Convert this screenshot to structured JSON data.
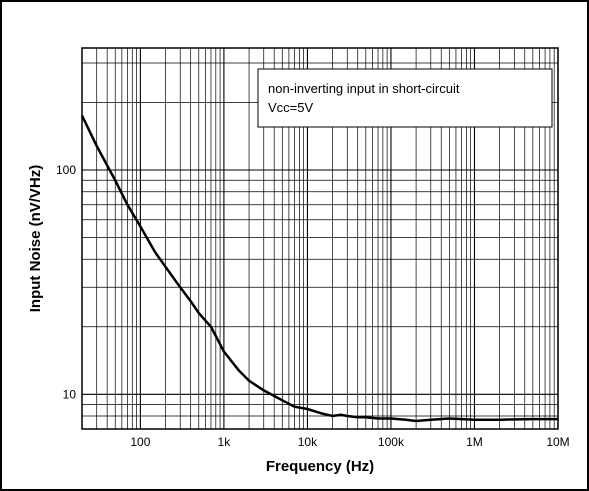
{
  "chart_data": {
    "type": "line",
    "xlabel": "Frequency  (Hz)",
    "ylabel": "Input Noise   (nV/VHz)",
    "x_scale": "log",
    "y_scale": "log",
    "xlim": [
      20,
      10000000
    ],
    "ylim": [
      7,
      350
    ],
    "grid": true,
    "x_ticks": [
      {
        "value": 100,
        "label": "100"
      },
      {
        "value": 1000,
        "label": "1k"
      },
      {
        "value": 10000,
        "label": "10k"
      },
      {
        "value": 100000,
        "label": "100k"
      },
      {
        "value": 1000000,
        "label": "1M"
      },
      {
        "value": 10000000,
        "label": "10M"
      }
    ],
    "y_ticks": [
      {
        "value": 10,
        "label": "10"
      },
      {
        "value": 100,
        "label": "100"
      }
    ],
    "annotation": [
      "non-inverting input in short-circuit",
      "Vcc=5V"
    ],
    "series": [
      {
        "color": "#000000",
        "x": [
          20,
          30,
          50,
          70,
          100,
          150,
          200,
          300,
          400,
          500,
          700,
          1000,
          1500,
          2000,
          3000,
          5000,
          7000,
          10000,
          15000,
          20000,
          25000,
          30000,
          40000,
          50000,
          70000,
          100000,
          150000,
          200000,
          300000,
          500000,
          1000000,
          2000000,
          5000000,
          10000000
        ],
        "y": [
          175,
          128,
          90,
          70,
          56,
          43,
          37,
          30,
          26,
          23,
          20,
          15.5,
          12.8,
          11.5,
          10.4,
          9.4,
          8.8,
          8.6,
          8.2,
          8.0,
          8.1,
          8.0,
          7.9,
          7.9,
          7.8,
          7.8,
          7.7,
          7.6,
          7.7,
          7.8,
          7.7,
          7.7,
          7.75,
          7.75
        ]
      }
    ]
  }
}
